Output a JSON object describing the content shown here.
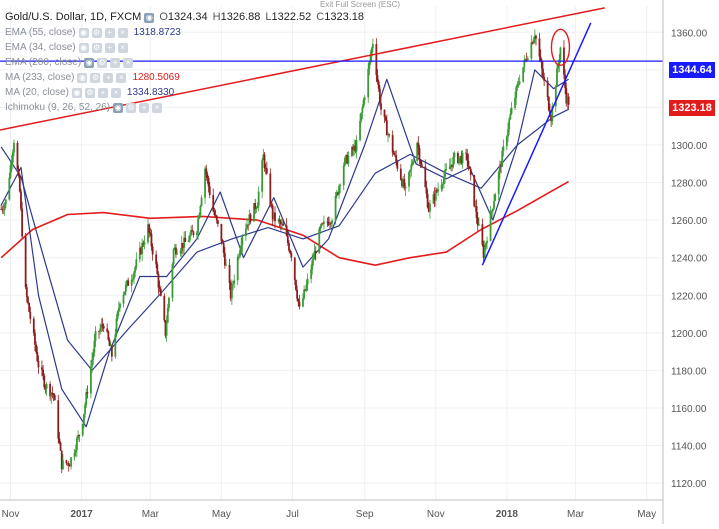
{
  "header": {
    "title": "Gold/U.S. Dollar, 1D, FXCM",
    "ohlc": [
      {
        "label": "O",
        "value": "1324.34"
      },
      {
        "label": "H",
        "value": "1326.88"
      },
      {
        "label": "L",
        "value": "1322.52"
      },
      {
        "label": "C",
        "value": "1323.18"
      }
    ],
    "exit_fullscreen": "Exit Full Screen (ESC)"
  },
  "indicators": [
    {
      "name": "EMA (55, close)",
      "value": "1318.8723",
      "color": "#2d3a8c"
    },
    {
      "name": "EMA (34, close)",
      "value": "",
      "color": ""
    },
    {
      "name": "EMA (200, close)",
      "value": "",
      "color": ""
    },
    {
      "name": "MA (233, close)",
      "value": "1280.5069",
      "color": "#e31b1b"
    },
    {
      "name": "MA (20, close)",
      "value": "1334.8330",
      "color": "#2d3a8c"
    },
    {
      "name": "Ichimoku (9, 26, 52, 26)",
      "value": "",
      "color": ""
    }
  ],
  "price_tags": [
    {
      "value": "1344.64",
      "color": "#1a1aff"
    },
    {
      "value": "1323.18",
      "color": "#e31b1b"
    }
  ],
  "colors": {
    "up_candle": "#3a9a35",
    "down_candle": "#8b1d1d",
    "trendline_red": "#e31b1b",
    "trendline_blue": "#1a1aff",
    "ma_blue": "#2d3a8c",
    "ma_red": "#e31b1b"
  },
  "chart_data": {
    "type": "candlestick",
    "yaxis_ticks": [
      1120,
      1140,
      1160,
      1180,
      1200,
      1220,
      1240,
      1260,
      1280,
      1300,
      1320,
      1340,
      1360
    ],
    "ylim": [
      1111,
      1374
    ],
    "xaxis_ticks": [
      {
        "label": "Nov",
        "date": "2016-11-01"
      },
      {
        "label": "2017",
        "date": "2017-01-01"
      },
      {
        "label": "Mar",
        "date": "2017-03-01"
      },
      {
        "label": "May",
        "date": "2017-05-01"
      },
      {
        "label": "Jul",
        "date": "2017-07-01"
      },
      {
        "label": "Sep",
        "date": "2017-09-01"
      },
      {
        "label": "Nov",
        "date": "2017-11-01"
      },
      {
        "label": "2018",
        "date": "2018-01-01"
      },
      {
        "label": "Mar",
        "date": "2018-03-01"
      },
      {
        "label": "May",
        "date": "2018-05-01"
      }
    ],
    "xlim": [
      "2016-10-23",
      "2018-05-15"
    ],
    "close_path": [
      [
        "2016-10-24",
        1266
      ],
      [
        "2016-10-28",
        1270
      ],
      [
        "2016-11-04",
        1303
      ],
      [
        "2016-11-09",
        1275
      ],
      [
        "2016-11-14",
        1222
      ],
      [
        "2016-11-18",
        1208
      ],
      [
        "2016-11-25",
        1183
      ],
      [
        "2016-12-01",
        1172
      ],
      [
        "2016-12-08",
        1167
      ],
      [
        "2016-12-15",
        1130
      ],
      [
        "2016-12-22",
        1131
      ],
      [
        "2017-01-01",
        1150
      ],
      [
        "2017-01-13",
        1198
      ],
      [
        "2017-01-20",
        1205
      ],
      [
        "2017-01-27",
        1188
      ],
      [
        "2017-02-03",
        1218
      ],
      [
        "2017-02-15",
        1233
      ],
      [
        "2017-02-27",
        1256
      ],
      [
        "2017-03-06",
        1235
      ],
      [
        "2017-03-14",
        1200
      ],
      [
        "2017-03-21",
        1244
      ],
      [
        "2017-03-31",
        1248
      ],
      [
        "2017-04-10",
        1256
      ],
      [
        "2017-04-17",
        1288
      ],
      [
        "2017-04-24",
        1265
      ],
      [
        "2017-05-01",
        1250
      ],
      [
        "2017-05-09",
        1220
      ],
      [
        "2017-05-19",
        1253
      ],
      [
        "2017-06-01",
        1270
      ],
      [
        "2017-06-06",
        1294
      ],
      [
        "2017-06-14",
        1262
      ],
      [
        "2017-06-23",
        1256
      ],
      [
        "2017-06-30",
        1242
      ],
      [
        "2017-07-07",
        1212
      ],
      [
        "2017-07-14",
        1227
      ],
      [
        "2017-07-25",
        1255
      ],
      [
        "2017-08-04",
        1262
      ],
      [
        "2017-08-14",
        1290
      ],
      [
        "2017-08-25",
        1300
      ],
      [
        "2017-09-08",
        1355
      ],
      [
        "2017-09-15",
        1319
      ],
      [
        "2017-09-26",
        1295
      ],
      [
        "2017-10-06",
        1275
      ],
      [
        "2017-10-16",
        1302
      ],
      [
        "2017-10-26",
        1266
      ],
      [
        "2017-11-06",
        1281
      ],
      [
        "2017-11-17",
        1293
      ],
      [
        "2017-11-28",
        1293
      ],
      [
        "2017-12-06",
        1262
      ],
      [
        "2017-12-12",
        1242
      ],
      [
        "2017-12-22",
        1275
      ],
      [
        "2018-01-03",
        1313
      ],
      [
        "2018-01-12",
        1336
      ],
      [
        "2018-01-25",
        1360
      ],
      [
        "2018-02-02",
        1333
      ],
      [
        "2018-02-08",
        1315
      ],
      [
        "2018-02-16",
        1352
      ],
      [
        "2018-02-21",
        1325
      ],
      [
        "2018-02-23",
        1323
      ]
    ],
    "ema55": [
      [
        "2016-10-24",
        1299
      ],
      [
        "2016-11-10",
        1283
      ],
      [
        "2016-12-01",
        1237
      ],
      [
        "2016-12-20",
        1196
      ],
      [
        "2017-01-10",
        1180
      ],
      [
        "2017-02-10",
        1202
      ],
      [
        "2017-03-10",
        1221
      ],
      [
        "2017-04-10",
        1243
      ],
      [
        "2017-05-10",
        1250
      ],
      [
        "2017-06-10",
        1256
      ],
      [
        "2017-07-10",
        1250
      ],
      [
        "2017-08-10",
        1257
      ],
      [
        "2017-09-10",
        1285
      ],
      [
        "2017-10-10",
        1295
      ],
      [
        "2017-11-10",
        1285
      ],
      [
        "2017-12-10",
        1277
      ],
      [
        "2018-01-10",
        1300
      ],
      [
        "2018-02-10",
        1315
      ],
      [
        "2018-02-23",
        1319
      ]
    ],
    "ma20": [
      [
        "2016-10-24",
        1268
      ],
      [
        "2016-11-10",
        1288
      ],
      [
        "2016-11-25",
        1220
      ],
      [
        "2016-12-15",
        1170
      ],
      [
        "2017-01-05",
        1150
      ],
      [
        "2017-01-25",
        1190
      ],
      [
        "2017-02-20",
        1230
      ],
      [
        "2017-03-15",
        1230
      ],
      [
        "2017-04-10",
        1250
      ],
      [
        "2017-04-30",
        1275
      ],
      [
        "2017-05-20",
        1240
      ],
      [
        "2017-06-15",
        1272
      ],
      [
        "2017-07-10",
        1235
      ],
      [
        "2017-08-01",
        1250
      ],
      [
        "2017-09-01",
        1300
      ],
      [
        "2017-09-20",
        1335
      ],
      [
        "2017-10-15",
        1290
      ],
      [
        "2017-11-10",
        1282
      ],
      [
        "2017-11-30",
        1288
      ],
      [
        "2017-12-20",
        1260
      ],
      [
        "2018-01-10",
        1300
      ],
      [
        "2018-01-25",
        1340
      ],
      [
        "2018-02-10",
        1330
      ],
      [
        "2018-02-23",
        1335
      ]
    ],
    "ma233": [
      [
        "2016-10-24",
        1240
      ],
      [
        "2016-11-20",
        1255
      ],
      [
        "2016-12-20",
        1263
      ],
      [
        "2017-01-20",
        1264
      ],
      [
        "2017-03-01",
        1261
      ],
      [
        "2017-04-15",
        1262
      ],
      [
        "2017-06-01",
        1260
      ],
      [
        "2017-07-10",
        1252
      ],
      [
        "2017-08-10",
        1240
      ],
      [
        "2017-09-10",
        1236
      ],
      [
        "2017-10-10",
        1240
      ],
      [
        "2017-11-10",
        1243
      ],
      [
        "2017-12-10",
        1255
      ],
      [
        "2018-01-10",
        1265
      ],
      [
        "2018-02-10",
        1276
      ],
      [
        "2018-02-23",
        1280.5
      ]
    ],
    "trendline_resistance": [
      [
        "2016-10-23",
        1308
      ],
      [
        "2018-03-26",
        1373
      ]
    ],
    "trendline_support": [
      [
        "2017-12-11",
        1236
      ],
      [
        "2018-03-14",
        1365
      ]
    ],
    "horizontal_level": 1344.64,
    "highlight_ellipse": {
      "date": "2018-02-16",
      "price": 1352
    }
  }
}
